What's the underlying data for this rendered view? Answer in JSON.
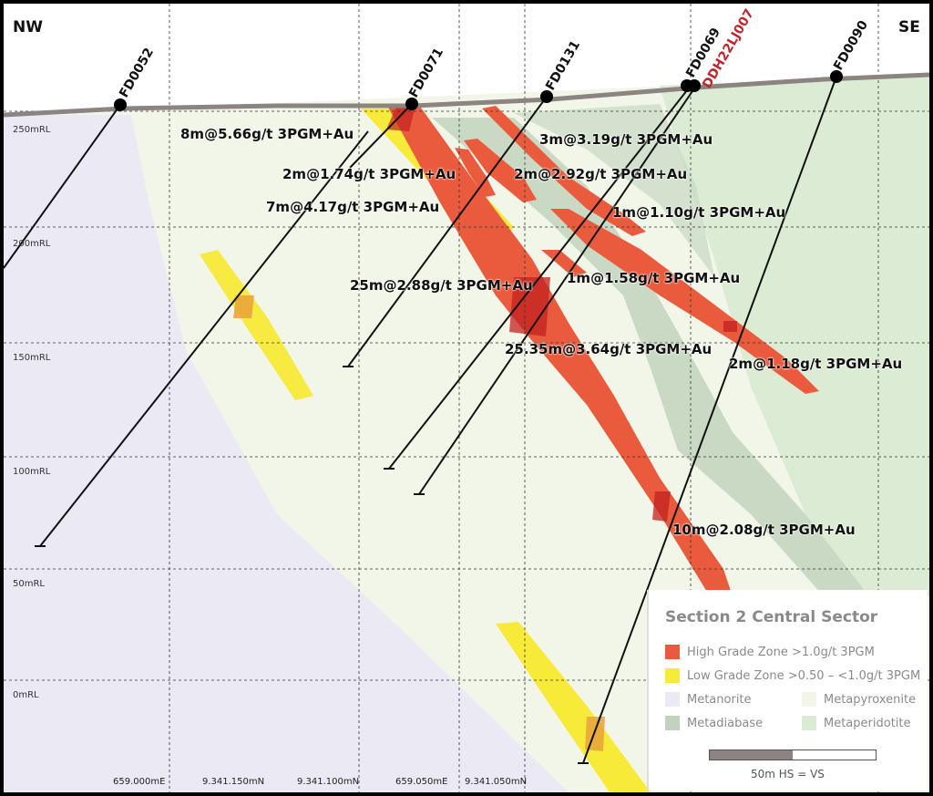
{
  "compass": {
    "left": "NW",
    "right": "SE"
  },
  "rl_labels": [
    "250mRL",
    "200mRL",
    "150mRL",
    "100mRL",
    "50mRL",
    "0mRL"
  ],
  "coord_labels": [
    "659.000mE",
    "9.341.150mN",
    "9.341.100mN",
    "659.050mE",
    "9.341.050mN"
  ],
  "holes": [
    {
      "id": "FD0052"
    },
    {
      "id": "FD0071"
    },
    {
      "id": "FD0131"
    },
    {
      "id": "FD0069"
    },
    {
      "id": "DDH22LJ007"
    },
    {
      "id": "FD0090"
    }
  ],
  "intervals": [
    "8m@5.66g/t 3PGM+Au",
    "2m@1.74g/t 3PGM+Au",
    "7m@4.17g/t 3PGM+Au",
    "3m@3.19g/t 3PGM+Au",
    "2m@2.92g/t 3PGM+Au",
    "1m@1.10g/t 3PGM+Au",
    "25m@2.88g/t 3PGM+Au",
    "1m@1.58g/t 3PGM+Au",
    "25.35m@3.64g/t 3PGM+Au",
    "2m@1.18g/t 3PGM+Au",
    "10m@2.08g/t 3PGM+Au"
  ],
  "legend": {
    "title": "Section 2 Central Sector",
    "high_grade": "High Grade Zone >1.0g/t 3PGM",
    "low_grade": "Low Grade Zone >0.50 – <1.0g/t 3PGM",
    "metanorite": "Metanorite",
    "metapyroxenite": "Metapyroxenite",
    "metadiabase": "Metadiabase",
    "metaperidotite": "Metaperidotite",
    "scale": "50m  HS = VS"
  },
  "colors": {
    "high_grade": "#ea5a3c",
    "low_grade": "#f7ea38",
    "metanorite": "#ebe9f4",
    "metapyroxenite": "#f2f6e9",
    "metadiabase": "#c2d3bd",
    "metaperidotite": "#dcecd4",
    "hole_red_label": "#c0272d"
  }
}
